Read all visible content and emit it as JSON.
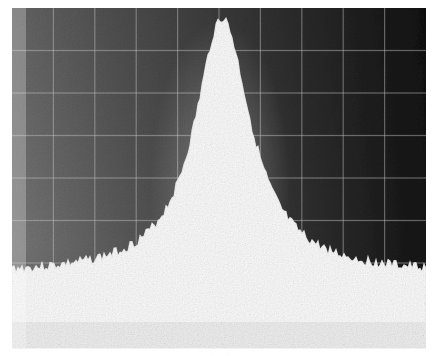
{
  "image": {
    "subject": "oscilloscope-trace",
    "style": "grainy monochrome halftone photograph",
    "colors": {
      "background": "#ffffff",
      "screen_mid": "#5a5a5a",
      "screen_dark": "#1a1a1a",
      "trace": "#ffffff",
      "grid": "#cfcfcf"
    }
  }
}
